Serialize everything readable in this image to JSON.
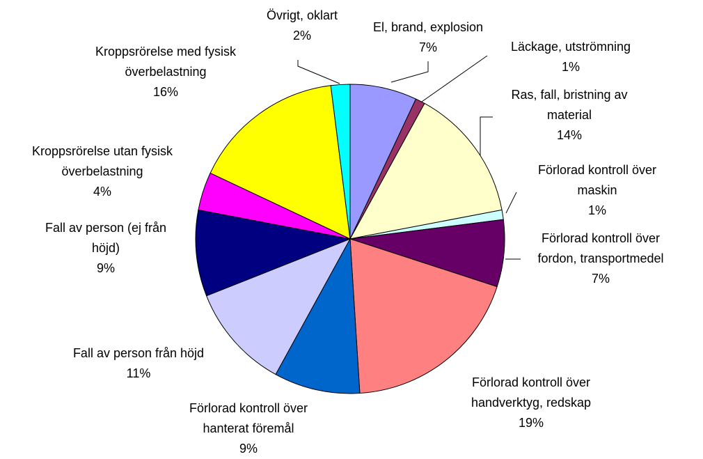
{
  "chart_data": {
    "type": "pie",
    "categories": [
      "El, brand, explosion",
      "Läckage, utströmning",
      "Ras, fall, bristning av material",
      "Förlorad kontroll över maskin",
      "Förlorad kontroll över fordon, transportmedel",
      "Förlorad kontroll över handverktyg, redskap",
      "Förlorad kontroll över hanterat föremål",
      "Fall av person från höjd",
      "Fall av person (ej från höjd)",
      "Kroppsrörelse utan fysisk överbelastning",
      "Kroppsrörelse med fysisk överbelastning",
      "Övrigt, oklart"
    ],
    "values": [
      7,
      1,
      14,
      1,
      7,
      19,
      9,
      11,
      9,
      4,
      16,
      2
    ],
    "value_labels": [
      "7%",
      "1%",
      "14%",
      "1%",
      "7%",
      "19%",
      "9%",
      "11%",
      "9%",
      "4%",
      "16%",
      "2%"
    ],
    "colors": [
      "#9999ff",
      "#993366",
      "#ffffcc",
      "#ccffff",
      "#660066",
      "#ff8080",
      "#0066cc",
      "#ccccff",
      "#000080",
      "#ff00ff",
      "#ffff00",
      "#00ffff"
    ]
  }
}
